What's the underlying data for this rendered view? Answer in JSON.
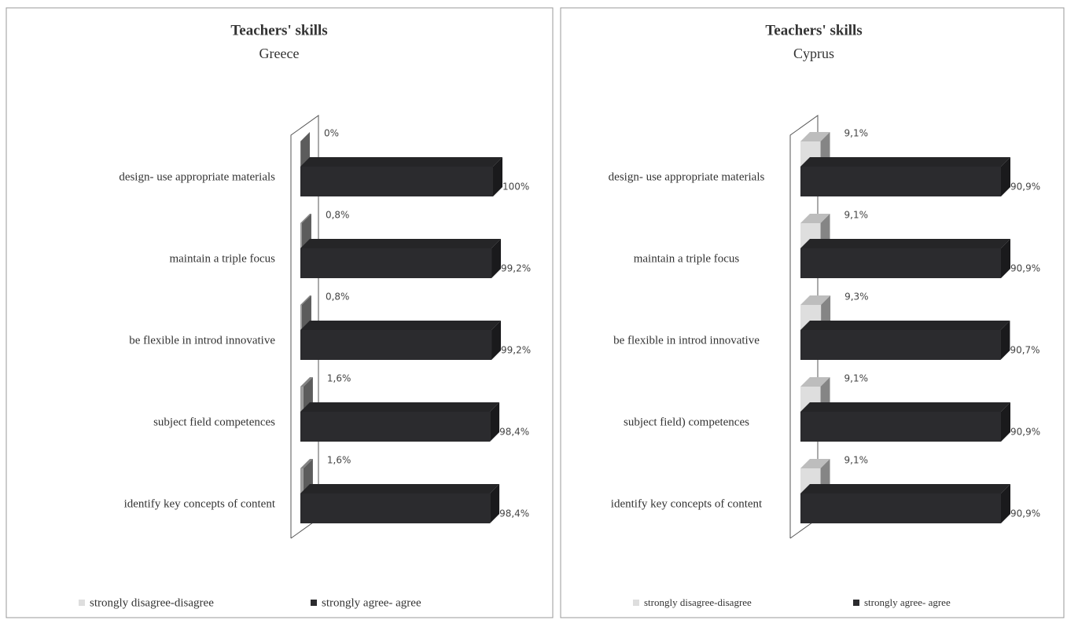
{
  "chart_data": [
    {
      "type": "bar",
      "title": "Teachers' skills",
      "subtitle": "Greece",
      "categories": [
        "design- use appropriate materials",
        "maintain a triple focus",
        "be flexible in introd innovative",
        "subject field competences",
        "identify key concepts of content"
      ],
      "series": [
        {
          "name": "strongly disagree-disagree",
          "color": "#9a9a9a",
          "values": [
            0,
            0.8,
            0.8,
            1.6,
            1.6
          ],
          "value_labels": [
            "0%",
            "0,8%",
            "0,8%",
            "1,6%",
            "1,6%"
          ]
        },
        {
          "name": "strongly agree- agree",
          "color": "#2b2b2e",
          "values": [
            100,
            99.2,
            99.2,
            98.4,
            98.4
          ],
          "value_labels": [
            "100%",
            "99,2%",
            "99,2%",
            "98,4%",
            "98,4%"
          ]
        }
      ]
    },
    {
      "type": "bar",
      "title": "Teachers' skills",
      "subtitle": "Cyprus",
      "categories": [
        "design- use appropriate materials",
        "maintain a triple focus",
        "be flexible in introd innovative",
        "subject field) competences",
        "identify key concepts of content"
      ],
      "series": [
        {
          "name": "strongly disagree-disagree",
          "color": "#dedede",
          "values": [
            9.1,
            9.1,
            9.3,
            9.1,
            9.1
          ],
          "value_labels": [
            "9,1%",
            "9,1%",
            "9,3%",
            "9,1%",
            "9,1%"
          ]
        },
        {
          "name": "strongly agree- agree",
          "color": "#2b2b2e",
          "values": [
            90.9,
            90.9,
            90.7,
            90.9,
            90.9
          ],
          "value_labels": [
            "90,9%",
            "90,9%",
            "90,7%",
            "90,9%",
            "90,9%"
          ]
        }
      ]
    }
  ]
}
